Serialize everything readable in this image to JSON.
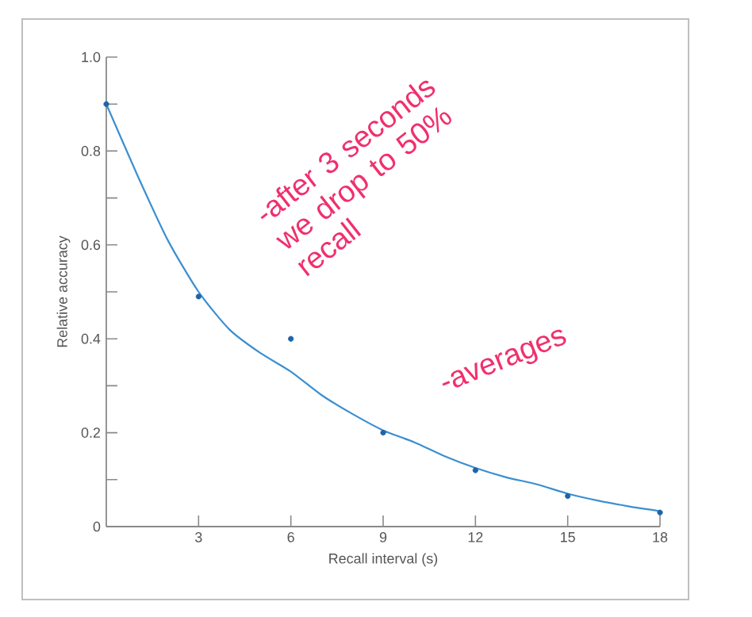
{
  "chart_data": {
    "type": "scatter",
    "xlabel": "Recall interval (s)",
    "ylabel": "Relative accuracy",
    "xlim": [
      0,
      18
    ],
    "xticks": [
      3,
      6,
      9,
      12,
      15,
      18
    ],
    "ylim": [
      0,
      1.0
    ],
    "yticks": [
      0,
      {
        "value": 0.1,
        "label": null
      },
      {
        "value": 0.2,
        "label": "0.2"
      },
      {
        "value": 0.3,
        "label": null
      },
      {
        "value": 0.4,
        "label": "0.4"
      },
      {
        "value": 0.5,
        "label": null
      },
      {
        "value": 0.6,
        "label": "0.6"
      },
      {
        "value": 0.7,
        "label": null
      },
      {
        "value": 0.8,
        "label": "0.8"
      },
      {
        "value": 0.9,
        "label": null
      },
      {
        "value": 1.0,
        "label": "1.0"
      }
    ],
    "series": [
      {
        "type": "line",
        "color": "#3b8fd0",
        "marker": "none",
        "line_style": "solid",
        "x": [
          0,
          1,
          2,
          3,
          4,
          5,
          6,
          7,
          8,
          9,
          10,
          11,
          12,
          13,
          14,
          15,
          16,
          17,
          18
        ],
        "values": [
          0.9,
          0.75,
          0.61,
          0.5,
          0.42,
          0.37,
          0.33,
          0.28,
          0.24,
          0.205,
          0.18,
          0.15,
          0.125,
          0.105,
          0.09,
          0.07,
          0.055,
          0.043,
          0.033
        ]
      },
      {
        "color": "#1f63a8",
        "marker": "circle",
        "x": [
          0,
          3,
          6,
          9,
          12,
          15,
          18
        ],
        "values": [
          0.9,
          0.49,
          0.4,
          0.2,
          0.12,
          0.065,
          0.03
        ]
      }
    ],
    "annotations": [
      "-after 3 seconds we drop to 50% recall",
      "-averages"
    ]
  }
}
